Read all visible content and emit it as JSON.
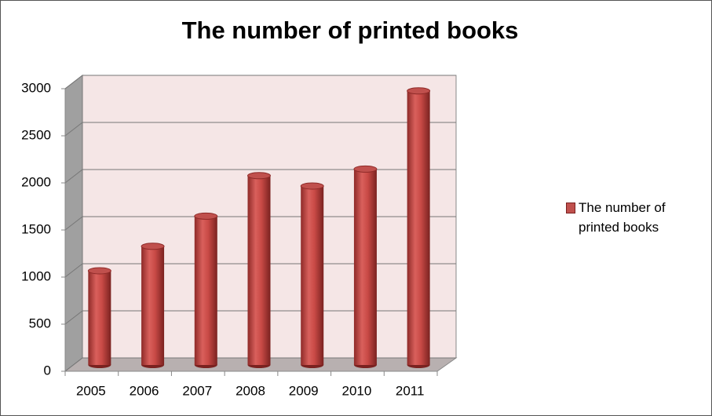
{
  "chart_data": {
    "type": "bar",
    "title": "The number of printed books",
    "categories": [
      "2005",
      "2006",
      "2007",
      "2008",
      "2009",
      "2010",
      "2011"
    ],
    "series": [
      {
        "name": "The number of printed books",
        "color": "#c0504d",
        "values": [
          1000,
          1260,
          1580,
          2010,
          1900,
          2080,
          2910
        ]
      }
    ],
    "ylim": [
      0,
      3000
    ],
    "yticks": [
      0,
      500,
      1000,
      1500,
      2000,
      2500,
      3000
    ],
    "grid": true,
    "legend": "right"
  }
}
